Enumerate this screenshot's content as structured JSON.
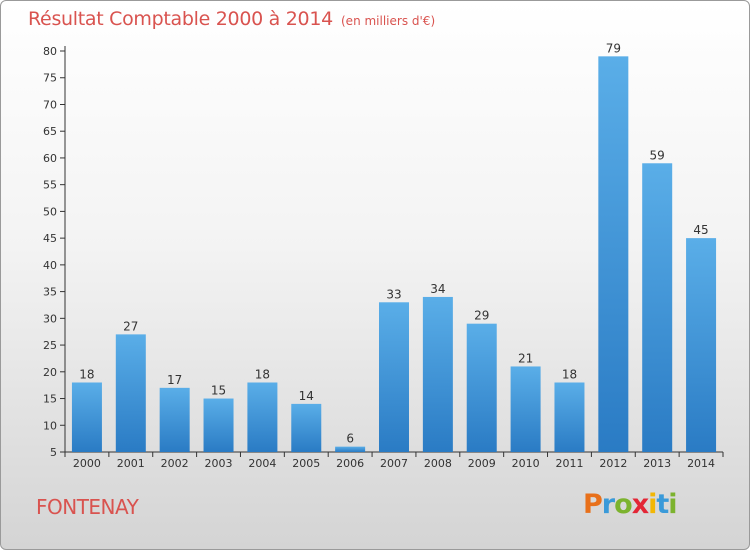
{
  "header": {
    "title": "Résultat Comptable 2000 à 2014",
    "subtitle": "(en milliers d'€)"
  },
  "footer": {
    "place": "FONTENAY",
    "logo": "Proxiti",
    "logo_colors": [
      "#e8701a",
      "#3a9ad9",
      "#7cb32e",
      "#e32636",
      "#f2b705",
      "#3a9ad9",
      "#7cb32e"
    ]
  },
  "colors": {
    "title": "#d9534f",
    "bar_top": "#5aaee8",
    "bar_bottom": "#2a7bc4",
    "axis": "#333333",
    "grid": "#e0e0e0"
  },
  "chart_data": {
    "type": "bar",
    "title": "Résultat Comptable 2000 à 2014",
    "subtitle": "(en milliers d'€)",
    "xlabel": "",
    "ylabel": "",
    "categories": [
      "2000",
      "2001",
      "2002",
      "2003",
      "2004",
      "2005",
      "2006",
      "2007",
      "2008",
      "2009",
      "2010",
      "2011",
      "2012",
      "2013",
      "2014"
    ],
    "values": [
      18,
      27,
      17,
      15,
      18,
      14,
      6,
      33,
      34,
      29,
      21,
      18,
      79,
      59,
      45
    ],
    "data_labels": [
      "18",
      "27",
      "17",
      "15",
      "18",
      "14",
      "6",
      "33",
      "34",
      "29",
      "21",
      "18",
      "79",
      "59",
      "45"
    ],
    "ylim": [
      5,
      80
    ],
    "yticks": [
      5,
      10,
      15,
      20,
      25,
      30,
      35,
      40,
      45,
      50,
      55,
      60,
      65,
      70,
      75,
      80
    ],
    "grid": false,
    "legend": "none"
  }
}
